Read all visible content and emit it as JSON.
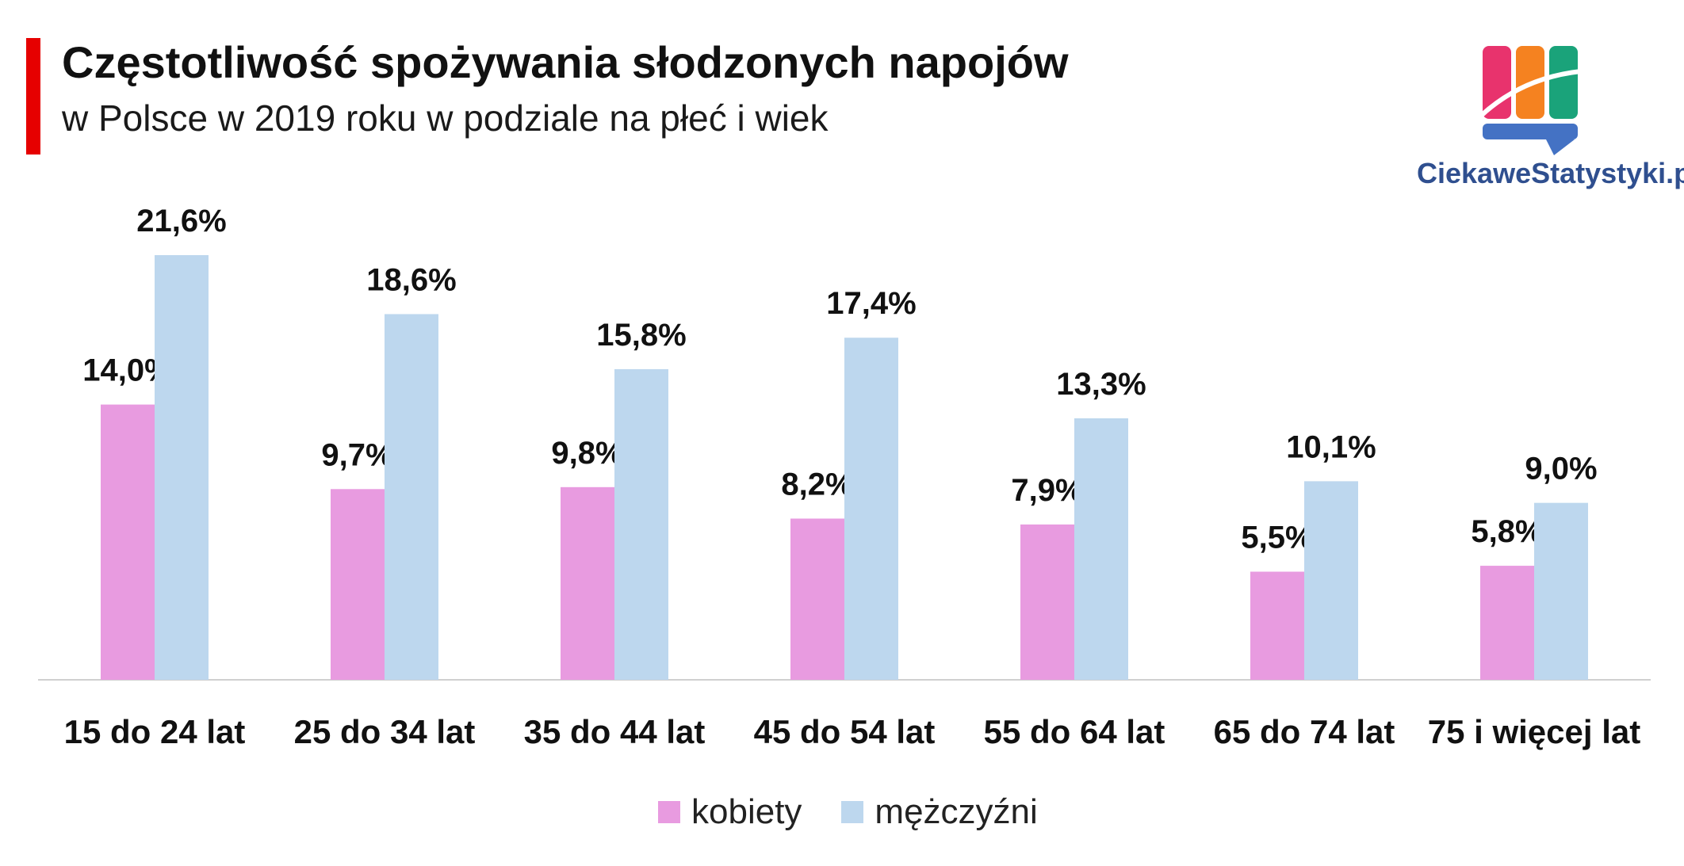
{
  "header": {
    "title": "Częstotliwość spożywania słodzonych napojów",
    "subtitle": "w Polsce w 2019 roku w podziale na płeć i wiek",
    "accent_color": "#e60000"
  },
  "brand": {
    "name": "CiekaweStatystyki.pl",
    "colors": [
      "#e8336d",
      "#f58220",
      "#1aa37a",
      "#4472c4"
    ]
  },
  "chart_data": {
    "type": "bar",
    "categories": [
      "15 do 24 lat",
      "25 do 34 lat",
      "35 do 44 lat",
      "45 do 54 lat",
      "55 do 64 lat",
      "65 do 74 lat",
      "75 i więcej lat"
    ],
    "series": [
      {
        "name": "kobiety",
        "color": "#e89be0",
        "values": [
          14.0,
          9.7,
          9.8,
          8.2,
          7.9,
          5.5,
          5.8
        ],
        "labels": [
          "14,0%",
          "9,7%",
          "9,8%",
          "8,2%",
          "7,9%",
          "5,5%",
          "5,8%"
        ]
      },
      {
        "name": "mężczyźni",
        "color": "#bdd7ee",
        "values": [
          21.6,
          18.6,
          15.8,
          17.4,
          13.3,
          10.1,
          9.0
        ],
        "labels": [
          "21,6%",
          "18,6%",
          "15,8%",
          "17,4%",
          "13,3%",
          "10,1%",
          "9,0%"
        ]
      }
    ],
    "ylim": [
      0,
      22
    ],
    "grid": false,
    "legend_position": "bottom"
  }
}
